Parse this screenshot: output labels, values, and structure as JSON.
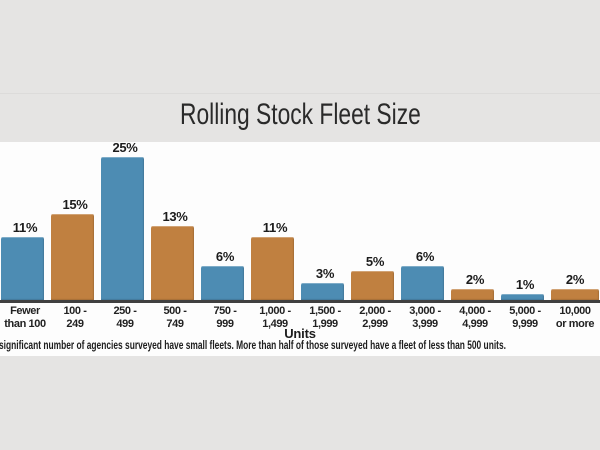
{
  "page": {
    "background_color": "#e5e4e3",
    "panel_color": "#fdfdfd"
  },
  "chart_data": {
    "type": "bar",
    "title": "Rolling Stock Fleet Size",
    "xlabel": "Units",
    "unit": "%",
    "categories": [
      [
        "Fewer",
        "than 100"
      ],
      [
        "100 -",
        "249"
      ],
      [
        "250 -",
        "499"
      ],
      [
        "500 -",
        "749"
      ],
      [
        "750 -",
        "999"
      ],
      [
        "1,000 -",
        "1,499"
      ],
      [
        "1,500 -",
        "1,999"
      ],
      [
        "2,000 -",
        "2,999"
      ],
      [
        "3,000 -",
        "3,999"
      ],
      [
        "4,000 -",
        "4,999"
      ],
      [
        "5,000 -",
        "9,999"
      ],
      [
        "10,000",
        "or more"
      ]
    ],
    "values": [
      11,
      15,
      25,
      13,
      6,
      11,
      3,
      5,
      6,
      2,
      1,
      2
    ],
    "value_labels": [
      "11%",
      "15%",
      "25%",
      "13%",
      "6%",
      "11%",
      "3%",
      "5%",
      "6%",
      "2%",
      "1%",
      "2%"
    ],
    "ylim": [
      0,
      26
    ],
    "grid": false,
    "legend": null,
    "bar_color_blue": "#4d8cb3",
    "bar_color_orange": "#c08040",
    "axis_line_color": "#404040",
    "label_color": "#1c1c1c"
  },
  "caption": "significant number of agencies surveyed have small fleets. More than half of those surveyed have a fleet of less than 500 units."
}
